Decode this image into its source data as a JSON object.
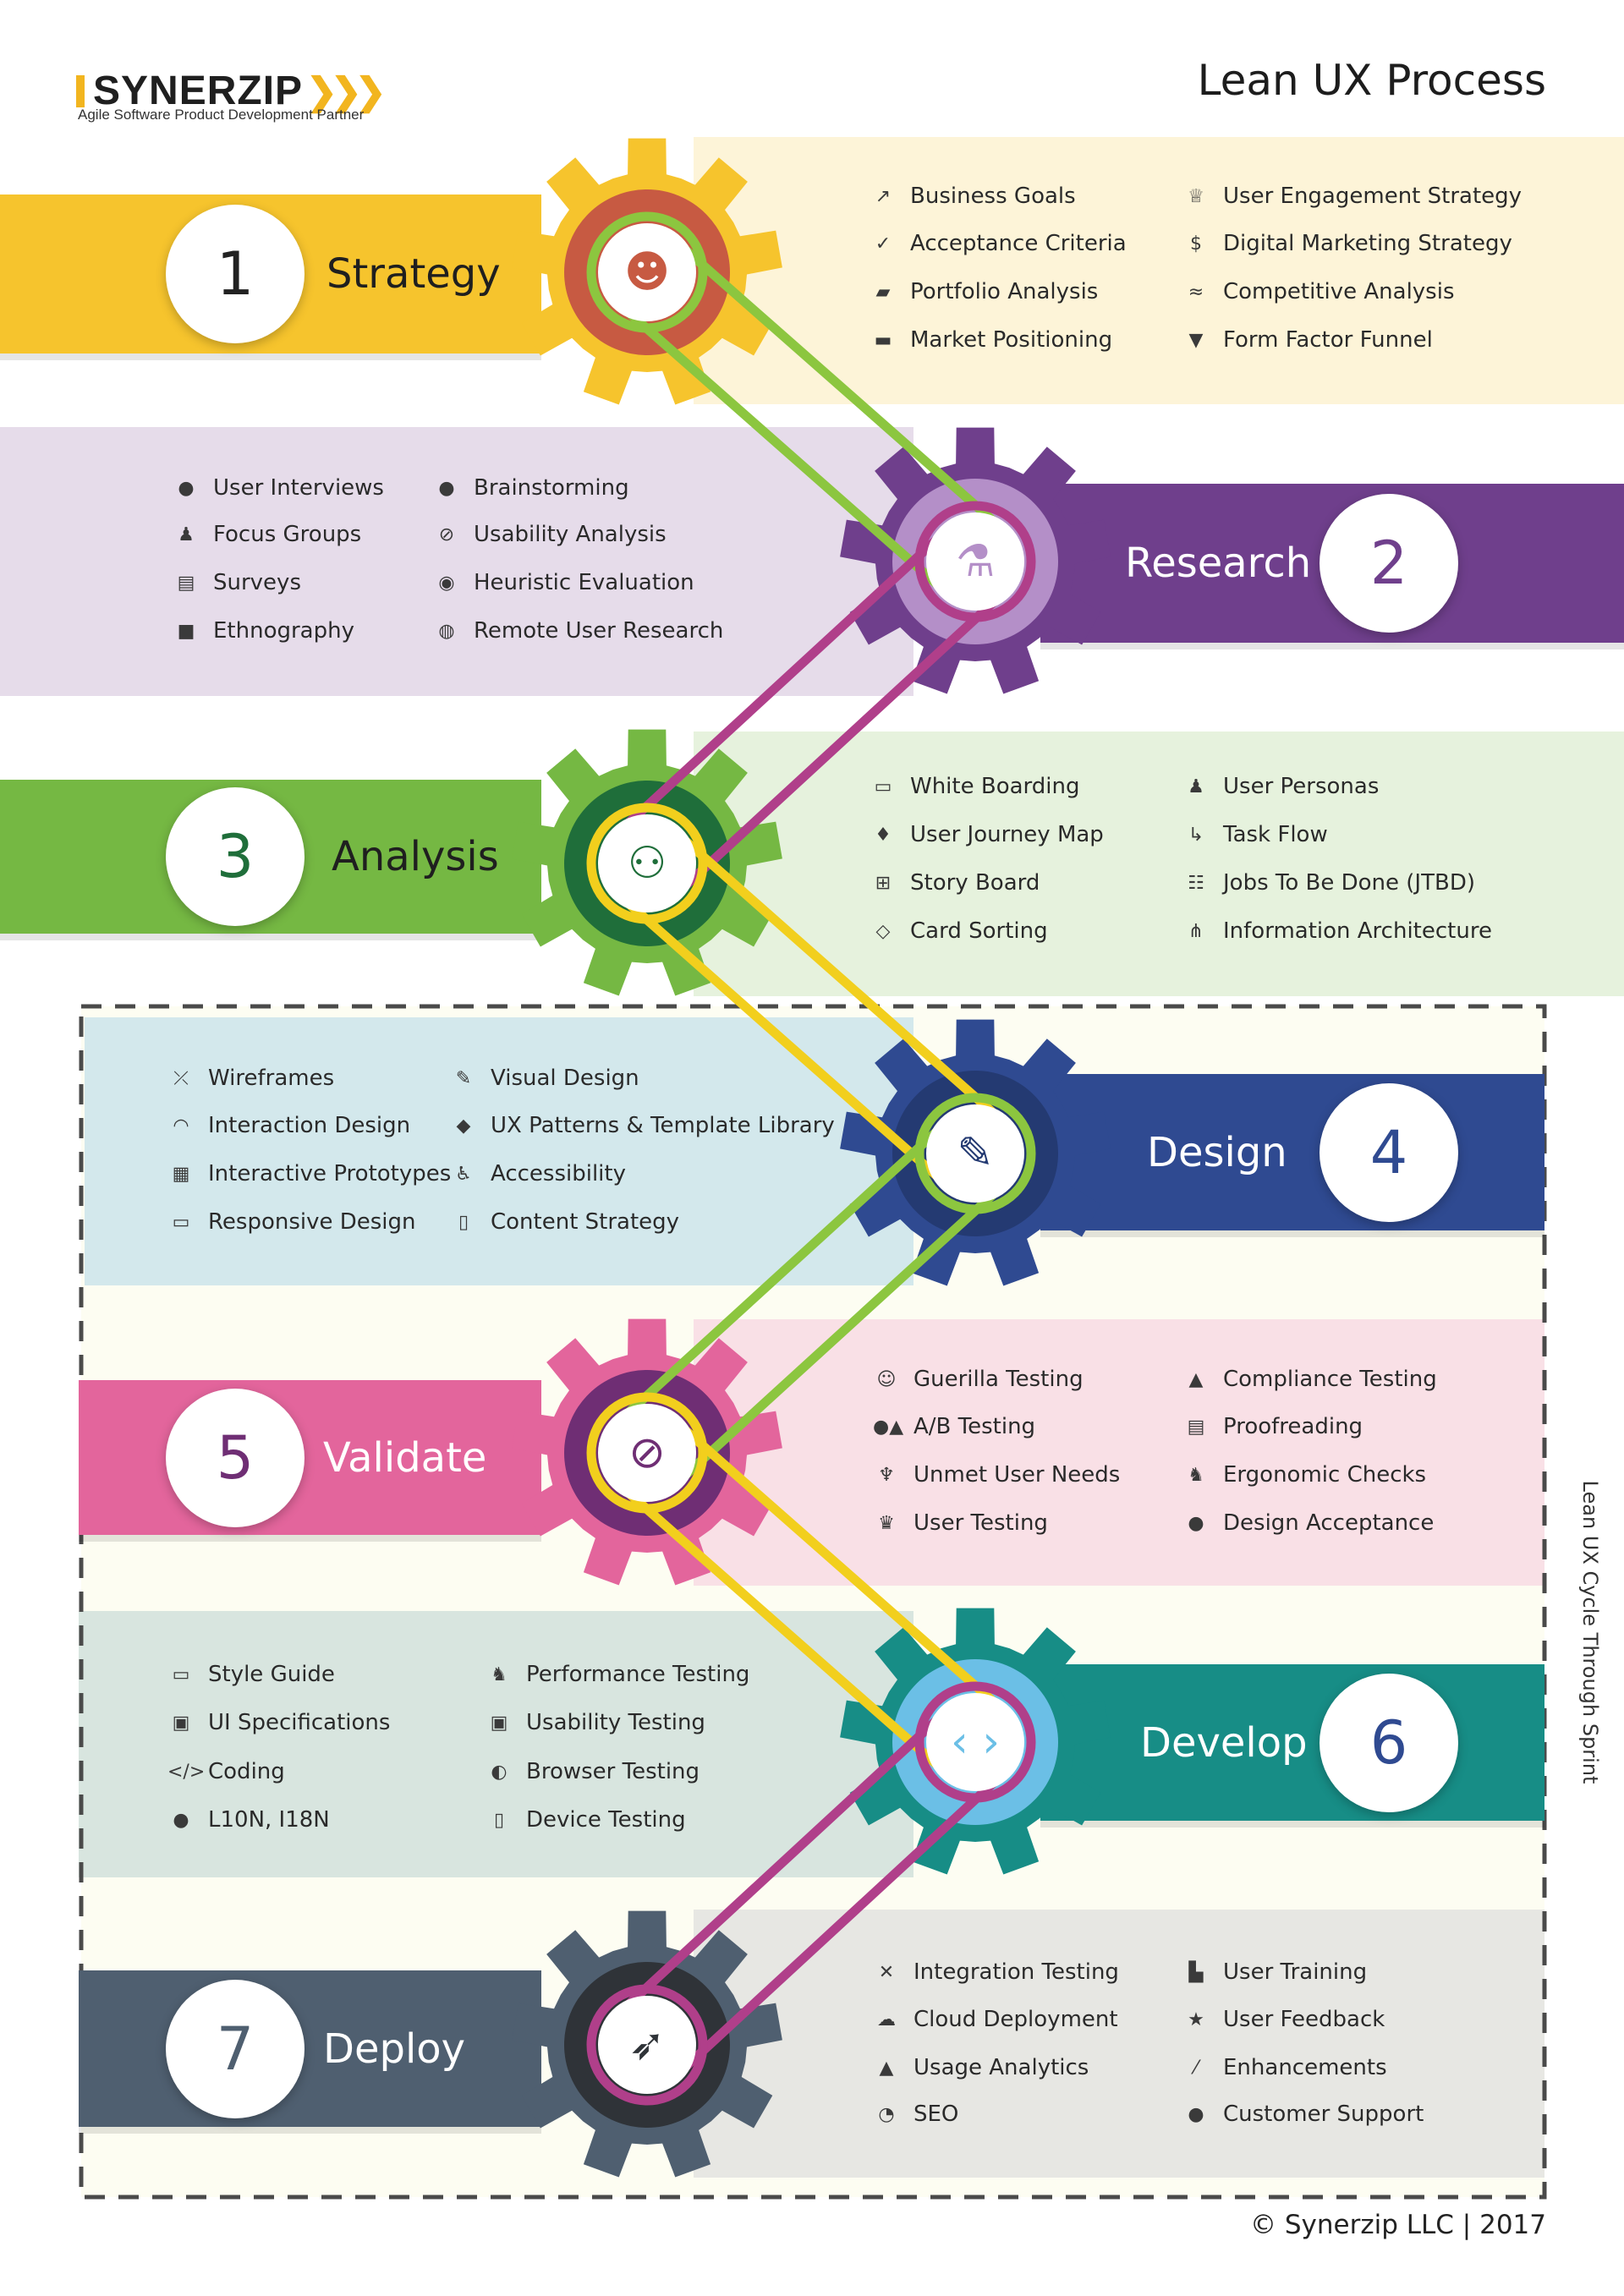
{
  "header": {
    "logo_text": "SYNERZIP",
    "tagline": "Agile Software Product Development Partner",
    "title": "Lean UX Process"
  },
  "side_label": "Lean UX Cycle Through Sprint",
  "footer": "© Synerzip LLC | 2017",
  "colors": {
    "strategy": "#f6c42d",
    "research": "#6f3f8c",
    "analysis": "#75b843",
    "design": "#2f4a91",
    "validate": "#e3659c",
    "develop": "#178d86",
    "deploy": "#4f5f70",
    "line_green": "#8cc63f",
    "line_magenta": "#b03f8a",
    "line_yellow": "#f2cf1d"
  },
  "stages": [
    {
      "number": "1",
      "name": "Strategy",
      "gear_icon": "head-lightbulb-icon",
      "items": [
        {
          "icon": "trending-up-icon",
          "label": "Business Goals"
        },
        {
          "icon": "check-icon",
          "label": "Acceptance Criteria"
        },
        {
          "icon": "map-icon",
          "label": "Portfolio Analysis"
        },
        {
          "icon": "briefcase-icon",
          "label": "Market Positioning"
        },
        {
          "icon": "trophy-icon",
          "label": "User Engagement Strategy"
        },
        {
          "icon": "dollar-icon",
          "label": "Digital Marketing Strategy"
        },
        {
          "icon": "chart-line-icon",
          "label": "Competitive Analysis"
        },
        {
          "icon": "funnel-icon",
          "label": "Form Factor Funnel"
        }
      ]
    },
    {
      "number": "2",
      "name": "Research",
      "gear_icon": "flask-icon",
      "items": [
        {
          "icon": "chat-icon",
          "label": "User Interviews"
        },
        {
          "icon": "users-icon",
          "label": "Focus Groups"
        },
        {
          "icon": "document-icon",
          "label": "Surveys"
        },
        {
          "icon": "video-camera-icon",
          "label": "Ethnography"
        },
        {
          "icon": "bulb-icon",
          "label": "Brainstorming"
        },
        {
          "icon": "paperclip-icon",
          "label": "Usability Analysis"
        },
        {
          "icon": "eye-icon",
          "label": "Heuristic Evaluation"
        },
        {
          "icon": "globe-icon",
          "label": "Remote User Research"
        }
      ]
    },
    {
      "number": "3",
      "name": "Analysis",
      "gear_icon": "flow-branch-icon",
      "items": [
        {
          "icon": "whiteboard-icon",
          "label": "White Boarding"
        },
        {
          "icon": "journey-icon",
          "label": "User Journey Map"
        },
        {
          "icon": "storyboard-icon",
          "label": "Story Board"
        },
        {
          "icon": "cards-icon",
          "label": "Card Sorting"
        },
        {
          "icon": "user-icon",
          "label": "User Personas"
        },
        {
          "icon": "task-flow-icon",
          "label": "Task Flow"
        },
        {
          "icon": "list-icon",
          "label": "Jobs To Be Done (JTBD)"
        },
        {
          "icon": "sitemap-icon",
          "label": "Information Architecture"
        }
      ]
    },
    {
      "number": "4",
      "name": "Design",
      "gear_icon": "paintbrush-icon",
      "items": [
        {
          "icon": "wireframe-icon",
          "label": "Wireframes"
        },
        {
          "icon": "gauge-icon",
          "label": "Interaction Design"
        },
        {
          "icon": "prototype-icon",
          "label": "Interactive Prototypes"
        },
        {
          "icon": "monitor-icon",
          "label": "Responsive Design"
        },
        {
          "icon": "pen-icon",
          "label": "Visual Design"
        },
        {
          "icon": "layers-icon",
          "label": "UX Patterns & Template Library"
        },
        {
          "icon": "accessibility-icon",
          "label": "Accessibility"
        },
        {
          "icon": "clipboard-icon",
          "label": "Content Strategy"
        }
      ]
    },
    {
      "number": "5",
      "name": "Validate",
      "gear_icon": "magnifier-check-icon",
      "items": [
        {
          "icon": "face-icon",
          "label": "Guerilla Testing"
        },
        {
          "icon": "ab-shapes-icon",
          "label": "A/B Testing"
        },
        {
          "icon": "person-icon",
          "label": "Unmet User Needs"
        },
        {
          "icon": "crown-icon",
          "label": "User Testing"
        },
        {
          "icon": "thumbs-up-icon",
          "label": "Compliance Testing"
        },
        {
          "icon": "file-icon",
          "label": "Proofreading"
        },
        {
          "icon": "walking-icon",
          "label": "Ergonomic Checks"
        },
        {
          "icon": "check-circle-icon",
          "label": "Design Acceptance"
        }
      ]
    },
    {
      "number": "6",
      "name": "Develop",
      "gear_icon": "code-brackets-icon",
      "items": [
        {
          "icon": "style-guide-icon",
          "label": "Style Guide"
        },
        {
          "icon": "spec-icon",
          "label": "UI Specifications"
        },
        {
          "icon": "code-icon",
          "label": "Coding"
        },
        {
          "icon": "globe-solid-icon",
          "label": "L10N, I18N"
        },
        {
          "icon": "running-icon",
          "label": "Performance Testing"
        },
        {
          "icon": "screen-icon",
          "label": "Usability Testing"
        },
        {
          "icon": "browser-icon",
          "label": "Browser Testing"
        },
        {
          "icon": "mobile-icon",
          "label": "Device Testing"
        }
      ]
    },
    {
      "number": "7",
      "name": "Deploy",
      "gear_icon": "rocket-icon",
      "items": [
        {
          "icon": "arrows-in-icon",
          "label": "Integration Testing"
        },
        {
          "icon": "cloud-icon",
          "label": "Cloud Deployment"
        },
        {
          "icon": "area-chart-icon",
          "label": "Usage Analytics"
        },
        {
          "icon": "pie-chart-icon",
          "label": "SEO"
        },
        {
          "icon": "training-icon",
          "label": "User Training"
        },
        {
          "icon": "star-icon",
          "label": "User Feedback"
        },
        {
          "icon": "wand-icon",
          "label": "Enhancements"
        },
        {
          "icon": "support-icon",
          "label": "Customer Support"
        }
      ]
    }
  ]
}
